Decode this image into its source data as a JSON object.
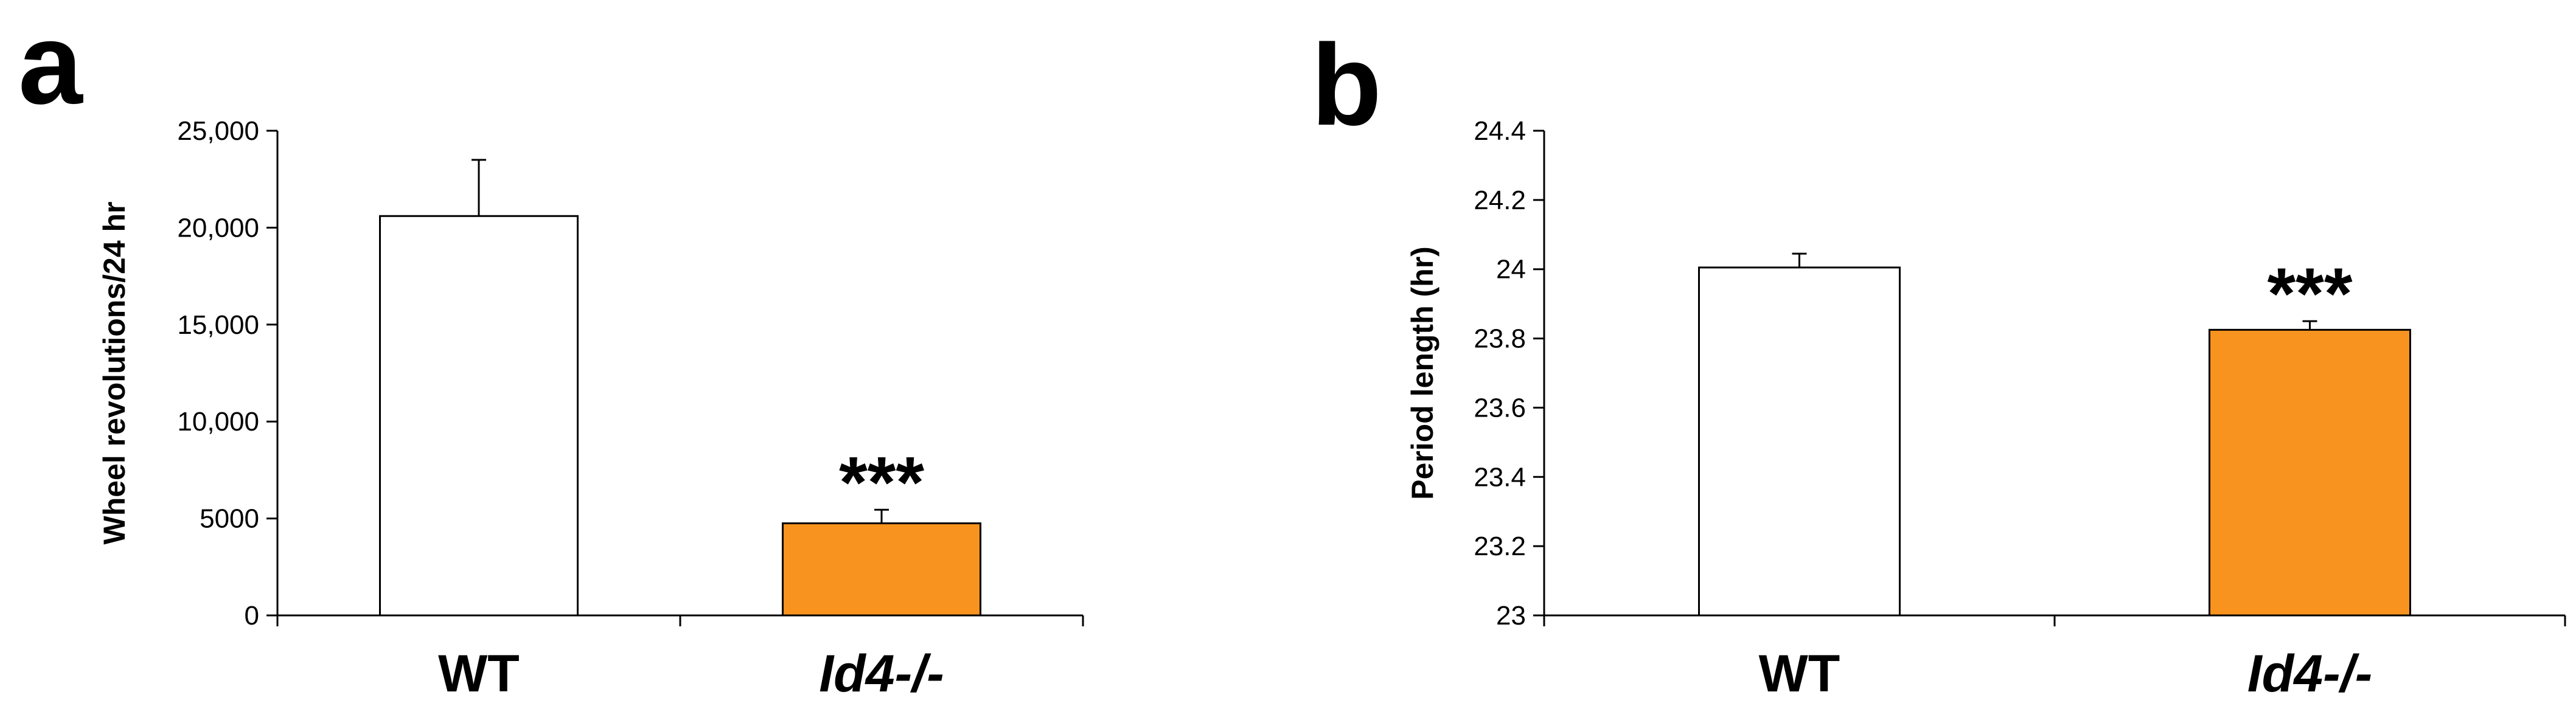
{
  "colors": {
    "wt": "#ffffff",
    "ko": "#f7931e",
    "axis": "#000000"
  },
  "chart_data": [
    {
      "type": "bar",
      "panel": "a",
      "ylabel": "Wheel revolutions/24 hr",
      "ylim": [
        0,
        25000
      ],
      "yticks": [
        0,
        5000,
        10000,
        15000,
        20000,
        25000
      ],
      "yticklabels": [
        "0",
        "5000",
        "10,000",
        "15,000",
        "20,000",
        "25,000"
      ],
      "categories": [
        "WT",
        "Id4-/-"
      ],
      "values": [
        20600,
        4750
      ],
      "errors": [
        2900,
        700
      ],
      "significance": [
        "",
        "***"
      ],
      "grid": false
    },
    {
      "type": "bar",
      "panel": "b",
      "ylabel": "Period length (hr)",
      "ylim": [
        23,
        24.4
      ],
      "yticks": [
        23,
        23.2,
        23.4,
        23.6,
        23.8,
        24,
        24.2,
        24.4
      ],
      "yticklabels": [
        "23",
        "23.2",
        "23.4",
        "23.6",
        "23.8",
        "24",
        "24.2",
        "24.4"
      ],
      "categories": [
        "WT",
        "Id4-/-"
      ],
      "values": [
        24.005,
        23.825
      ],
      "errors": [
        0.04,
        0.025
      ],
      "significance": [
        "",
        "***"
      ],
      "grid": false
    }
  ]
}
